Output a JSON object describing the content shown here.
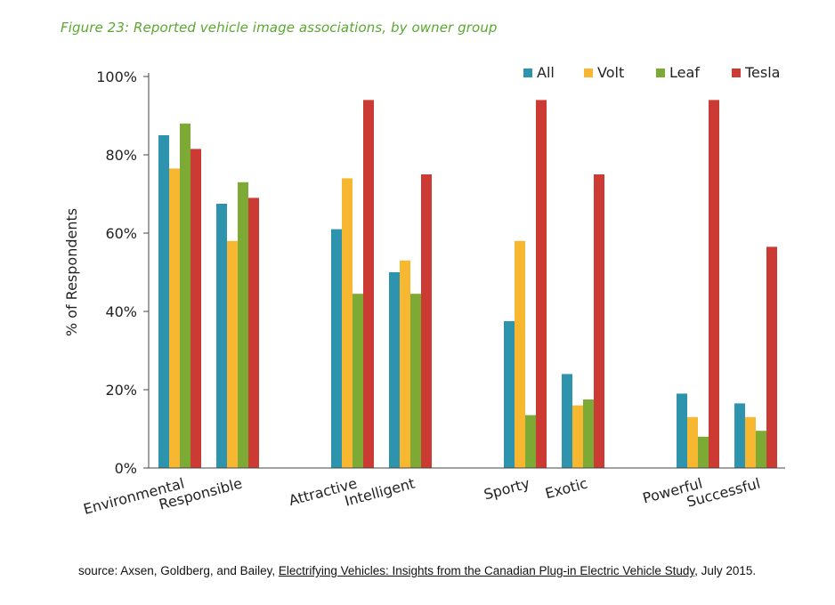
{
  "figure_title": "Figure 23: Reported vehicle image associations, by owner group",
  "source": {
    "prefix": "source: Axsen, Goldberg, and Bailey, ",
    "link_text": "Electrifying Vehicles: Insights from the Canadian Plug-in Electric Vehicle Study",
    "suffix": ", July 2015."
  },
  "colors": {
    "All": "#2e93ad",
    "Volt": "#f7b731",
    "Leaf": "#7daa34",
    "Tesla": "#cc3a34"
  },
  "chart_data": {
    "type": "bar",
    "title": "",
    "xlabel": "",
    "ylabel": "% of Respondents",
    "ylim": [
      0,
      100
    ],
    "yticks": [
      "0%",
      "20%",
      "40%",
      "60%",
      "80%",
      "100%"
    ],
    "legend_position": "top-right",
    "grid": false,
    "categories": [
      "Environmental",
      "Responsible",
      "Attractive",
      "Intelligent",
      "Sporty",
      "Exotic",
      "Powerful",
      "Successful"
    ],
    "series": [
      {
        "name": "All",
        "values": [
          85,
          67.5,
          61,
          50,
          37.5,
          24,
          19,
          16.5
        ]
      },
      {
        "name": "Volt",
        "values": [
          76.5,
          58,
          74,
          53,
          58,
          16,
          13,
          13
        ]
      },
      {
        "name": "Leaf",
        "values": [
          88,
          73,
          44.5,
          44.5,
          13.5,
          17.5,
          8,
          9.5
        ]
      },
      {
        "name": "Tesla",
        "values": [
          81.5,
          69,
          94,
          75,
          94,
          75,
          94,
          56.5
        ]
      }
    ]
  }
}
